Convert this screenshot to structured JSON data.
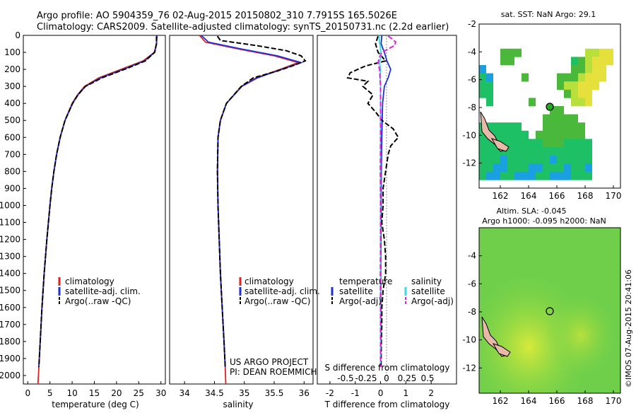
{
  "header": {
    "line1": "Argo profile: AO 5904359_76 02-Aug-2015 20150802_310 7.7915S 165.5026E",
    "line2": "Climatology: CARS2009. Satellite-adjusted climatology: synTS_20150731.nc (2.2d earlier)"
  },
  "credit": {
    "project": "US ARGO PROJECT",
    "pi": "PI: DEAN ROEMMICH",
    "stamp": "©IMOS 07-Aug-2015 20:41:06"
  },
  "colors": {
    "climatology": "#e02020",
    "satellite": "#1f2fd8",
    "argo": "#000000",
    "sal_satellite": "#33dddd",
    "sal_argo": "#e020e0"
  },
  "depth_ticks": [
    0,
    100,
    200,
    300,
    400,
    500,
    600,
    700,
    800,
    900,
    1000,
    1100,
    1200,
    1300,
    1400,
    1500,
    1600,
    1700,
    1800,
    1900,
    2000
  ],
  "chart_data": [
    {
      "type": "line",
      "panel": "temperature",
      "xlabel": "temperature (deg C)",
      "xlim": [
        -1,
        31
      ],
      "ylim": [
        2050,
        0
      ],
      "x_ticks": [
        0,
        5,
        10,
        15,
        20,
        25,
        30
      ],
      "legend": [
        "climatology",
        "satellite-adj. clim.",
        "Argo(..raw -QC)"
      ],
      "series": [
        {
          "name": "climatology",
          "color": "#e02020",
          "depth": [
            0,
            50,
            100,
            150,
            200,
            250,
            300,
            350,
            400,
            500,
            600,
            700,
            800,
            900,
            1000,
            1200,
            1400,
            1600,
            1800,
            1950,
            2000,
            2050
          ],
          "values": [
            29.1,
            29.0,
            28.5,
            26.0,
            21.0,
            16.0,
            12.8,
            11.2,
            10.0,
            8.4,
            7.3,
            6.5,
            5.9,
            5.4,
            5.0,
            4.3,
            3.7,
            3.2,
            2.8,
            2.5,
            2.4,
            2.3
          ]
        },
        {
          "name": "satellite-adj. clim.",
          "color": "#1f2fd8",
          "depth": [
            0,
            50,
            100,
            150,
            200,
            250,
            300,
            350,
            400,
            500,
            600,
            700,
            800,
            900,
            1000,
            1200,
            1400,
            1600,
            1800,
            1950
          ],
          "values": [
            29.1,
            29.0,
            28.6,
            26.3,
            21.5,
            16.4,
            13.0,
            11.3,
            10.1,
            8.4,
            7.3,
            6.5,
            5.9,
            5.4,
            5.0,
            4.3,
            3.7,
            3.2,
            2.8,
            2.5
          ]
        },
        {
          "name": "Argo(..raw -QC)",
          "color": "#000000",
          "depth": [
            5,
            50,
            100,
            150,
            200,
            250,
            300,
            350,
            400,
            500,
            600,
            700,
            800,
            900,
            1000,
            1200,
            1400,
            1600,
            1800,
            1950
          ],
          "values": [
            29.0,
            29.0,
            28.6,
            26.5,
            21.8,
            16.7,
            13.0,
            11.3,
            10.1,
            8.4,
            7.3,
            6.5,
            5.9,
            5.4,
            5.0,
            4.3,
            3.7,
            3.2,
            2.8,
            2.5
          ]
        }
      ]
    },
    {
      "type": "line",
      "panel": "salinity",
      "xlabel": "salinity",
      "xlim": [
        33.75,
        36.15
      ],
      "ylim": [
        2050,
        0
      ],
      "x_ticks": [
        34,
        34.5,
        35,
        35.5,
        36
      ],
      "legend": [
        "climatology",
        "satellite-adj. clim.",
        "Argo(..raw -QC)"
      ],
      "series": [
        {
          "name": "climatology",
          "color": "#e02020",
          "depth": [
            0,
            40,
            80,
            120,
            160,
            200,
            250,
            300,
            400,
            500,
            600,
            800,
            1000,
            1200,
            1400,
            1600,
            1800,
            1950,
            2050
          ],
          "values": [
            34.25,
            34.35,
            34.9,
            35.5,
            35.9,
            35.6,
            35.2,
            34.95,
            34.7,
            34.6,
            34.56,
            34.55,
            34.56,
            34.58,
            34.6,
            34.63,
            34.66,
            34.68,
            34.69
          ]
        },
        {
          "name": "satellite-adj. clim.",
          "color": "#1f2fd8",
          "depth": [
            0,
            40,
            80,
            120,
            160,
            200,
            250,
            300,
            400,
            500,
            600,
            800,
            1000,
            1200,
            1400,
            1600,
            1800,
            1950
          ],
          "values": [
            34.28,
            34.4,
            34.95,
            35.55,
            35.95,
            35.62,
            35.22,
            34.96,
            34.7,
            34.6,
            34.56,
            34.55,
            34.56,
            34.58,
            34.6,
            34.63,
            34.66,
            34.68
          ]
        },
        {
          "name": "Argo(..raw -QC)",
          "color": "#000000",
          "depth": [
            5,
            30,
            60,
            90,
            120,
            150,
            180,
            210,
            250,
            300,
            400,
            500,
            600,
            800,
            1000,
            1200,
            1400,
            1600,
            1800,
            1950
          ],
          "values": [
            34.55,
            34.6,
            35.2,
            35.7,
            35.95,
            36.02,
            35.8,
            35.55,
            35.15,
            34.95,
            34.7,
            34.6,
            34.56,
            34.55,
            34.56,
            34.58,
            34.6,
            34.63,
            34.66,
            34.68
          ]
        }
      ]
    },
    {
      "type": "line",
      "panel": "difference",
      "xlabel": "T difference from climatology",
      "x2label": "S difference from climatology",
      "xlim": [
        -2.5,
        3.0
      ],
      "ylim": [
        2050,
        0
      ],
      "x_ticks": [
        -2,
        -1,
        0,
        1,
        2
      ],
      "x2_ticks": [
        "-0.5",
        "-0.25",
        "0",
        "0.25",
        "0.5"
      ],
      "legend_temperature": {
        "heading": "temperature",
        "items": [
          "satellite",
          "Argo(-adj)"
        ]
      },
      "legend_salinity": {
        "heading": "salinity",
        "items": [
          "satellite",
          "Argo(-adj)"
        ]
      },
      "series": [
        {
          "name": "temperature satellite",
          "color": "#1f2fd8",
          "depth": [
            0,
            50,
            100,
            150,
            200,
            250,
            300,
            400,
            600,
            800,
            1000,
            1400,
            1800,
            1950
          ],
          "values": [
            0.05,
            0.02,
            0.15,
            0.25,
            0.4,
            0.3,
            0.15,
            0.08,
            0.05,
            0.03,
            0.02,
            0.01,
            0.01,
            0.0
          ]
        },
        {
          "name": "temperature Argo(-adj)",
          "color": "#000000",
          "depth": [
            5,
            50,
            100,
            150,
            180,
            200,
            220,
            250,
            270,
            300,
            350,
            400,
            450,
            500,
            550,
            600,
            650,
            700,
            800,
            900,
            1000,
            1100,
            1200,
            1300,
            1400,
            1500,
            1600,
            1700,
            1800,
            1900,
            1950
          ],
          "values": [
            -0.1,
            -0.2,
            -0.1,
            0.2,
            -0.6,
            -0.9,
            -1.2,
            -1.3,
            -0.5,
            -0.7,
            -0.3,
            -0.5,
            -0.2,
            0.05,
            0.5,
            0.7,
            0.4,
            0.3,
            0.2,
            0.1,
            0.1,
            0.05,
            0.15,
            0.2,
            0.2,
            0.1,
            0.05,
            0.05,
            0.03,
            0.02,
            0.02
          ]
        },
        {
          "name": "salinity satellite",
          "color": "#33dddd",
          "depth": [
            0,
            40,
            80,
            120,
            160,
            200,
            250,
            300,
            400,
            600,
            800,
            1000,
            1400,
            1800,
            1950
          ],
          "values": [
            -0.06,
            -0.04,
            0.0,
            0.02,
            -0.04,
            0.0,
            -0.02,
            0.0,
            0.0,
            0.0,
            0.0,
            0.0,
            0.0,
            0.0,
            0.0
          ]
        },
        {
          "name": "salinity Argo(-adj)",
          "color": "#e020e0",
          "depth": [
            5,
            20,
            40,
            60,
            80,
            100,
            130,
            160,
            200,
            300,
            400,
            600,
            800,
            1000,
            1200,
            1400,
            1600,
            1800,
            1950
          ],
          "values": [
            0.3,
            0.45,
            0.6,
            0.55,
            0.3,
            0.05,
            -0.05,
            -0.1,
            -0.04,
            0.0,
            0.0,
            0.0,
            -0.01,
            0.0,
            0.0,
            -0.01,
            0.0,
            0.0,
            0.0
          ]
        }
      ]
    },
    {
      "type": "heatmap",
      "panel": "sst-map",
      "title": "sat. SST: NaN Argo: 29.1",
      "xlim": [
        160.5,
        170.5
      ],
      "ylim": [
        -13.8,
        -2
      ],
      "x_ticks": [
        162,
        164,
        166,
        168,
        170
      ],
      "y_ticks": [
        -2,
        -4,
        -6,
        -8,
        -10,
        -12
      ],
      "float_position": [
        165.5,
        -7.79
      ]
    },
    {
      "type": "heatmap",
      "panel": "sla-map",
      "title_line1": "Altim. SLA: -0.045",
      "title_line2": "Argo h1000: -0.095 h2000: NaN",
      "xlim": [
        160.5,
        170.5
      ],
      "ylim": [
        -13.8,
        -2
      ],
      "x_ticks": [
        162,
        164,
        166,
        168,
        170
      ],
      "y_ticks": [
        -4,
        -6,
        -8,
        -10,
        -12
      ],
      "float_position": [
        165.5,
        -7.79
      ]
    }
  ]
}
